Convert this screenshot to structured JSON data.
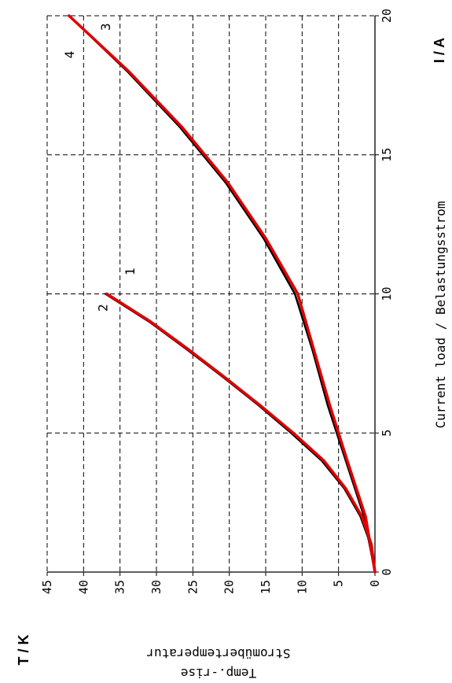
{
  "chart_data": {
    "type": "line",
    "x_unit_label": "I / A",
    "y_unit_label": "T / K",
    "xlabel": "Current load / Belastungsstrom",
    "ylabel_line1": "Stromübertemperatur",
    "ylabel_line2": "Temp.-rise",
    "xlim": [
      0,
      20
    ],
    "ylim": [
      0,
      45
    ],
    "x_ticks": [
      0,
      5,
      10,
      15,
      20
    ],
    "y_ticks": [
      0,
      5,
      10,
      15,
      20,
      25,
      30,
      35,
      40,
      45
    ],
    "grid": true,
    "series": [
      {
        "name": "1",
        "color": "#000000",
        "x": [
          0,
          2,
          4,
          6,
          8,
          10,
          12,
          14,
          16,
          18,
          20
        ],
        "y": [
          0,
          1.5,
          4,
          6.5,
          8.6,
          11,
          15.3,
          20.5,
          26.8,
          34,
          42
        ]
      },
      {
        "name": "2",
        "color": "#000000",
        "x": [
          0,
          1,
          2,
          3,
          4,
          5,
          6,
          7,
          8,
          9,
          10
        ],
        "y": [
          0,
          0.6,
          2,
          4.2,
          7.3,
          11.5,
          16,
          20.8,
          25.8,
          31,
          37
        ]
      },
      {
        "name": "3",
        "color": "#e00000",
        "x": [
          0,
          2,
          4,
          6,
          8,
          10,
          12,
          14,
          16,
          18,
          20
        ],
        "y": [
          0,
          1.3,
          3.8,
          6.2,
          8.4,
          10.6,
          15,
          20.2,
          26.5,
          33.8,
          42
        ]
      },
      {
        "name": "4",
        "color": "#e00000",
        "x": [
          0,
          1,
          2,
          3,
          4,
          5,
          6,
          7,
          8,
          9,
          10
        ],
        "y": [
          0,
          0.5,
          1.8,
          4,
          7,
          11.2,
          15.8,
          20.6,
          25.6,
          30.8,
          36.8
        ]
      }
    ]
  }
}
